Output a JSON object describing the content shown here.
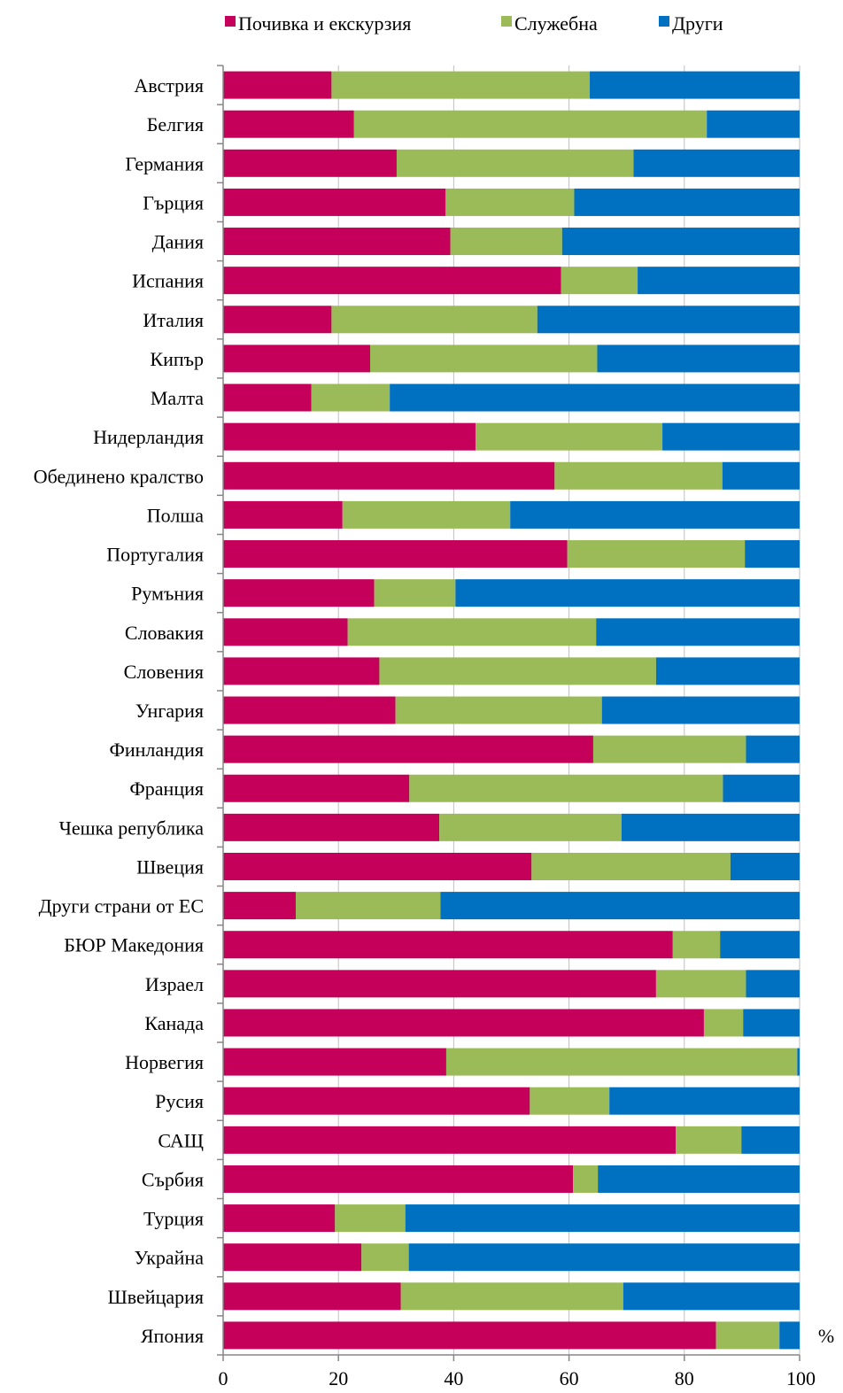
{
  "chart_data": {
    "type": "bar",
    "orientation": "horizontal",
    "stacked": true,
    "percent": true,
    "categories": [
      "Австрия",
      "Белгия",
      "Германия",
      "Гърция",
      "Дания",
      "Испания",
      "Италия",
      "Кипър",
      "Малта",
      "Нидерландия",
      "Обединено кралство",
      "Полша",
      "Португалия",
      "Румъния",
      "Словакия",
      "Словения",
      "Унгария",
      "Финландия",
      "Франция",
      "Чешка република",
      "Швеция",
      "Други страни от ЕС",
      "БЮР Македония",
      "Израел",
      "Канада",
      "Норвегия",
      "Русия",
      "САЩ",
      "Сърбия",
      "Турция",
      "Украйна",
      "Швейцария",
      "Япония"
    ],
    "series": [
      {
        "name": "Почивка и екскурзия",
        "color": "#C4005A",
        "values": [
          18.8,
          22.7,
          30.1,
          38.6,
          39.4,
          58.6,
          18.8,
          25.5,
          15.3,
          43.8,
          57.5,
          20.7,
          59.7,
          26.2,
          21.6,
          27.1,
          29.9,
          64.2,
          32.3,
          37.5,
          53.5,
          12.6,
          78.0,
          75.1,
          83.4,
          38.7,
          53.2,
          78.5,
          60.7,
          19.4,
          24.0,
          30.8,
          85.5
        ]
      },
      {
        "name": "Служебна",
        "color": "#9BBB59",
        "values": [
          44.8,
          61.2,
          41.1,
          22.3,
          19.4,
          13.3,
          35.7,
          39.4,
          13.6,
          32.4,
          29.1,
          29.1,
          30.8,
          14.1,
          43.1,
          48.0,
          35.8,
          26.5,
          54.4,
          31.6,
          34.5,
          25.1,
          8.2,
          15.6,
          6.8,
          60.9,
          13.8,
          11.4,
          4.3,
          12.2,
          8.2,
          38.6,
          11.0
        ]
      },
      {
        "name": "Други",
        "color": "#0070C0",
        "values": [
          36.4,
          16.1,
          28.8,
          39.1,
          41.2,
          28.1,
          45.5,
          35.1,
          71.1,
          23.8,
          13.4,
          50.2,
          9.5,
          59.7,
          35.3,
          24.9,
          34.3,
          9.3,
          13.3,
          30.9,
          12.0,
          62.3,
          13.8,
          9.3,
          9.8,
          0.4,
          33.0,
          10.1,
          35.0,
          68.4,
          67.8,
          30.6,
          3.5
        ]
      }
    ],
    "xlim": [
      0,
      100
    ],
    "xticks": [
      "0",
      "20",
      "40",
      "60",
      "80",
      "100"
    ],
    "unit": "%",
    "legend_position": "top",
    "grid": "vertical"
  }
}
